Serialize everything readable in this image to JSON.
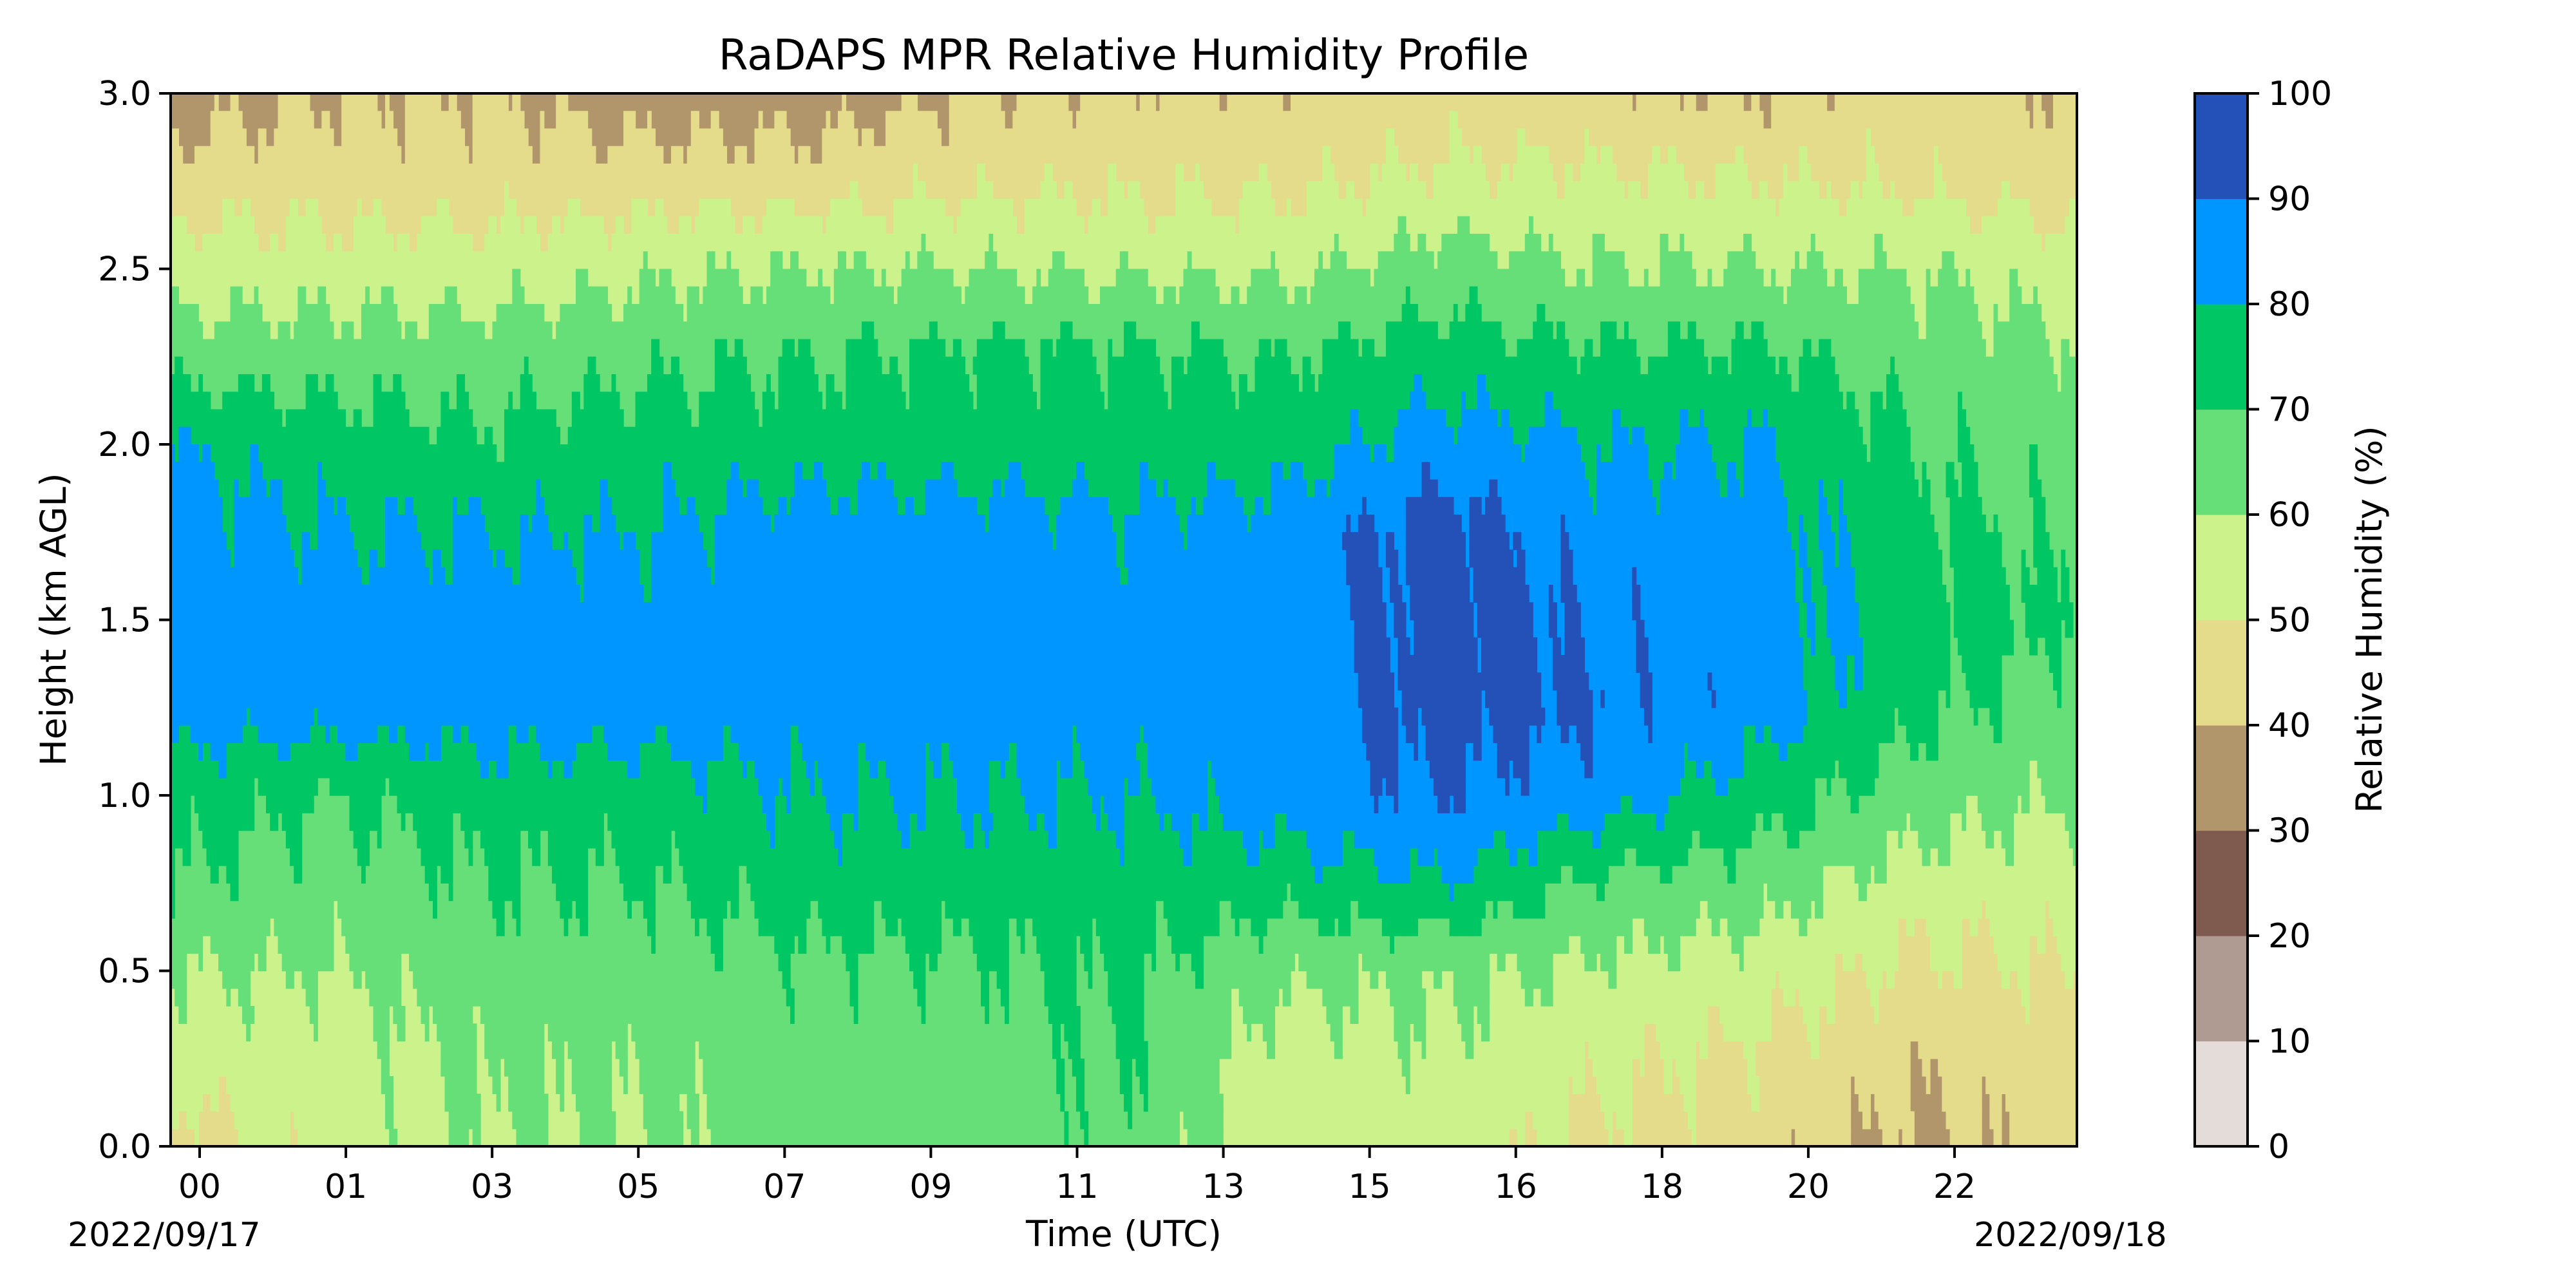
{
  "chart_data": {
    "type": "heatmap",
    "subtype": "filled-contour",
    "title": "RaDAPS MPR Relative Humidity Profile",
    "xlabel": "Time (UTC)",
    "ylabel": "Height (km AGL)",
    "colorbar_label": "Relative Humidity (%)",
    "date_start": "2022/09/17",
    "date_end": "2022/09/18",
    "x_ticks": [
      "00",
      "01",
      "03",
      "05",
      "07",
      "09",
      "11",
      "13",
      "15",
      "16",
      "18",
      "20",
      "22"
    ],
    "y_ticks": [
      "0.0",
      "0.5",
      "1.0",
      "1.5",
      "2.0",
      "2.5",
      "3.0"
    ],
    "ylim": [
      0,
      3
    ],
    "contour_levels": [
      0,
      10,
      20,
      30,
      40,
      50,
      60,
      70,
      80,
      90,
      100
    ],
    "level_colors": [
      "#e4dcd9",
      "#b09b93",
      "#7f5a4e",
      "#b0966a",
      "#e4dc8a",
      "#ccf28c",
      "#66df78",
      "#00c763",
      "#0096ff",
      "#2451b8"
    ],
    "colorbar_ticks": [
      "0",
      "10",
      "20",
      "30",
      "40",
      "50",
      "60",
      "70",
      "80",
      "90",
      "100"
    ],
    "profiles": {
      "hours": [
        0,
        2,
        4,
        6,
        8,
        10,
        12,
        14,
        16,
        18,
        20,
        22,
        24
      ],
      "heights_km": [
        0,
        0.25,
        0.5,
        0.75,
        1.0,
        1.25,
        1.5,
        1.75,
        2.0,
        2.25,
        2.5,
        2.75,
        3.0
      ],
      "rh_percent": [
        [
          45,
          55,
          60,
          70,
          75,
          85,
          85,
          85,
          80,
          65,
          55,
          45,
          35
        ],
        [
          55,
          55,
          60,
          65,
          70,
          85,
          85,
          80,
          75,
          65,
          55,
          45,
          40
        ],
        [
          60,
          62,
          65,
          70,
          75,
          85,
          85,
          80,
          72,
          65,
          55,
          45,
          40
        ],
        [
          60,
          62,
          65,
          70,
          75,
          85,
          85,
          80,
          75,
          68,
          58,
          45,
          35
        ],
        [
          65,
          65,
          68,
          75,
          80,
          85,
          85,
          85,
          75,
          70,
          60,
          45,
          35
        ],
        [
          65,
          65,
          68,
          75,
          80,
          85,
          85,
          85,
          75,
          72,
          60,
          48,
          40
        ],
        [
          68,
          70,
          72,
          75,
          80,
          85,
          85,
          82,
          75,
          72,
          58,
          48,
          42
        ],
        [
          55,
          55,
          62,
          75,
          85,
          85,
          85,
          85,
          75,
          70,
          58,
          48,
          42
        ],
        [
          55,
          58,
          62,
          80,
          90,
          95,
          95,
          95,
          85,
          75,
          65,
          52,
          45
        ],
        [
          48,
          52,
          58,
          68,
          85,
          90,
          88,
          85,
          80,
          72,
          60,
          52,
          42
        ],
        [
          45,
          48,
          55,
          65,
          75,
          85,
          85,
          85,
          80,
          72,
          60,
          50,
          40
        ],
        [
          38,
          42,
          48,
          55,
          65,
          72,
          75,
          72,
          70,
          65,
          60,
          48,
          45
        ],
        [
          45,
          45,
          50,
          55,
          60,
          65,
          70,
          68,
          65,
          62,
          55,
          45,
          40
        ]
      ]
    }
  }
}
